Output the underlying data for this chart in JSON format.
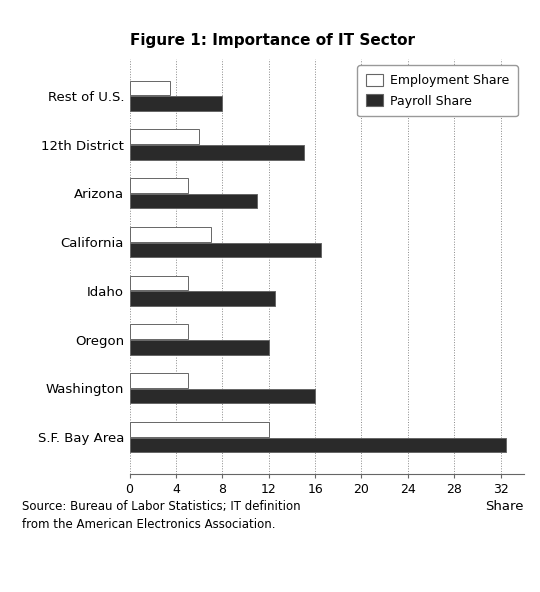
{
  "title": "Figure 1: Importance of IT Sector",
  "categories": [
    "Rest of U.S.",
    "12th District",
    "Arizona",
    "California",
    "Idaho",
    "Oregon",
    "Washington",
    "S.F. Bay Area"
  ],
  "employment_share": [
    3.5,
    6.0,
    5.0,
    7.0,
    5.0,
    5.0,
    5.0,
    12.0
  ],
  "payroll_share": [
    8.0,
    15.0,
    11.0,
    16.5,
    12.5,
    12.0,
    16.0,
    32.5
  ],
  "employment_color": "#ffffff",
  "payroll_color": "#2a2a2a",
  "bar_edge_color": "#666666",
  "xlabel": "Share",
  "xlim": [
    0,
    34
  ],
  "xticks": [
    0,
    4,
    8,
    12,
    16,
    20,
    24,
    28,
    32
  ],
  "legend_labels": [
    "Employment Share",
    "Payroll Share"
  ],
  "source_line1": "Source: Bureau of Labor Statistics; IT definition",
  "source_line2": "from the American Electronics Association.",
  "background_color": "#ffffff",
  "title_fontsize": 11,
  "label_fontsize": 9.5,
  "tick_fontsize": 9,
  "legend_fontsize": 9,
  "source_fontsize": 8.5,
  "bar_height": 0.3,
  "bar_spacing": 0.32
}
